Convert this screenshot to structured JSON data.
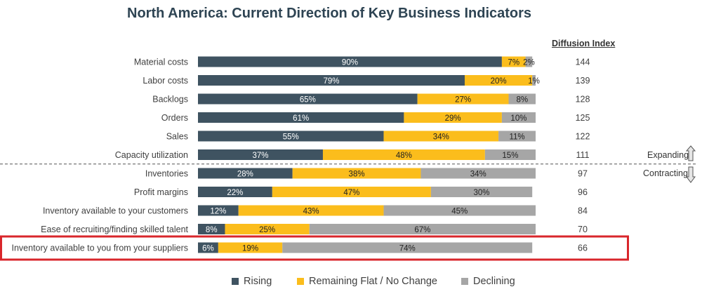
{
  "chart_data": {
    "type": "bar",
    "stacked": true,
    "orientation": "horizontal",
    "title": "North America: Current Direction of Key Business Indicators",
    "categories": [
      "Material costs",
      "Labor costs",
      "Backlogs",
      "Orders",
      "Sales",
      "Capacity utilization",
      "Inventories",
      "Profit margins",
      "Inventory available to your customers",
      "Ease of recruiting/finding skilled talent",
      "Inventory available to you from your suppliers"
    ],
    "series": [
      {
        "name": "Rising",
        "color": "#3f5361",
        "values": [
          90,
          79,
          65,
          61,
          55,
          37,
          28,
          22,
          12,
          8,
          6
        ]
      },
      {
        "name": "Remaining Flat / No Change",
        "color": "#fbbd1c",
        "values": [
          7,
          20,
          27,
          29,
          34,
          48,
          38,
          47,
          43,
          25,
          19
        ]
      },
      {
        "name": "Declining",
        "color": "#a6a6a6",
        "values": [
          2,
          1,
          8,
          10,
          11,
          15,
          34,
          30,
          45,
          67,
          74
        ]
      }
    ],
    "diffusion_index": {
      "header": "Diffusion Index",
      "values": [
        144,
        139,
        128,
        125,
        122,
        111,
        97,
        96,
        84,
        70,
        66
      ]
    },
    "divider_labels": {
      "expanding": "Expanding",
      "contracting": "Contracting"
    },
    "highlighted_category": "Inventory available to you from your suppliers",
    "highlight_color": "#d9262b",
    "legend_position": "bottom"
  }
}
